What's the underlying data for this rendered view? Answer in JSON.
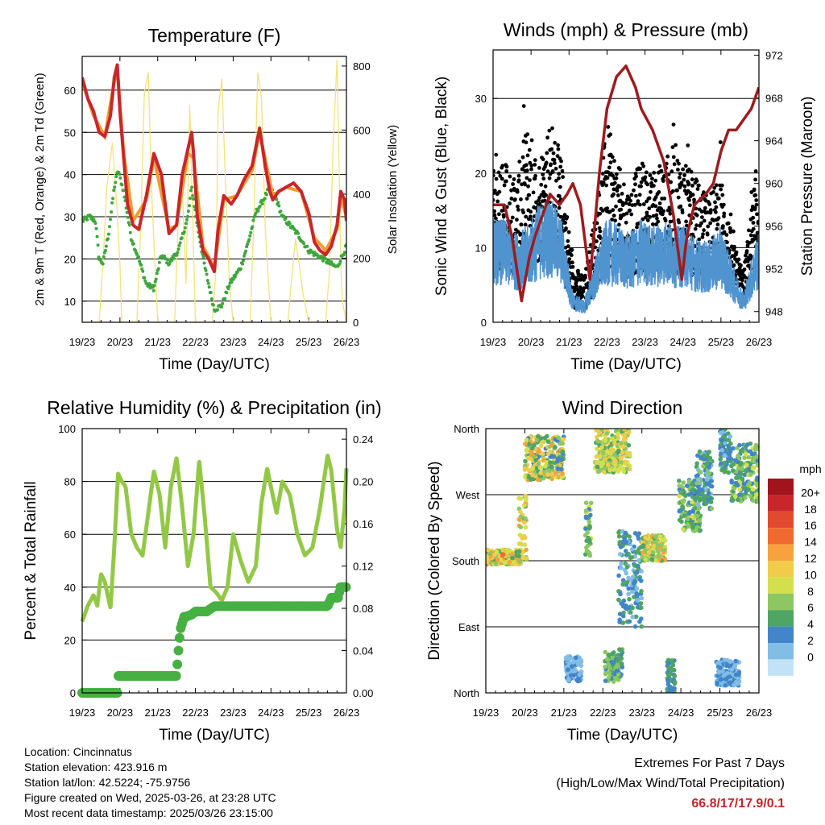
{
  "xaxis": {
    "ticks": [
      "19/23",
      "20/23",
      "21/23",
      "22/23",
      "23/23",
      "24/23",
      "25/23",
      "26/23"
    ],
    "label": "Time (Day/UTC)"
  },
  "info": {
    "location": "Location: Cincinnatus",
    "elevation": "Station elevation: 423.916 m",
    "latlon": "Station lat/lon: 42.5224; -75.9756",
    "created": "Figure created on Wed, 2025-03-26, at 23:28 UTC",
    "recent": "Most recent data timestamp: 2025/03/26 23:15:00"
  },
  "extremes": {
    "title": "Extremes For Past 7 Days",
    "subtitle": "(High/Low/Max Wind/Total Precipitation)",
    "values": "66.8/17/17.9/0.1"
  },
  "colors": {
    "temp2m": "#c8262b",
    "temp9m": "#f29a2e",
    "dewpoint": "#3ea63c",
    "solar": "#f4e27a",
    "wind": "#4f93cf",
    "gust": "#000000",
    "pressure": "#9e1b1e",
    "rh": "#93c847",
    "precip": "#46b043"
  },
  "chart_data": [
    {
      "id": "temperature",
      "type": "line",
      "title": "Temperature (F)",
      "xlabel": "Time (Day/UTC)",
      "ylabel": "2m & 9m T (Red, Orange) & 2m Td (Green)",
      "y2label": "Solar Insolation (Yellow)",
      "xlim": [
        0,
        7
      ],
      "ylim": [
        5,
        68
      ],
      "yticks": [
        10,
        20,
        30,
        40,
        50,
        60
      ],
      "y2lim": [
        0,
        830
      ],
      "y2ticks": [
        0,
        200,
        400,
        600,
        800
      ],
      "grid": true,
      "series": [
        {
          "key": "temp2m",
          "x": [
            0,
            0.15,
            0.3,
            0.45,
            0.6,
            0.75,
            0.85,
            0.93,
            1.0,
            1.1,
            1.2,
            1.35,
            1.5,
            1.7,
            1.9,
            2.1,
            2.3,
            2.5,
            2.65,
            2.8,
            2.9,
            2.95,
            3.05,
            3.2,
            3.35,
            3.5,
            3.6,
            3.75,
            3.95,
            4.1,
            4.3,
            4.5,
            4.7,
            4.85,
            4.97,
            5.05,
            5.2,
            5.4,
            5.6,
            5.8,
            6.0,
            6.15,
            6.3,
            6.45,
            6.6,
            6.75,
            6.85,
            6.95,
            7.0
          ],
          "y": [
            63,
            58,
            55,
            50,
            49,
            54,
            63,
            66,
            55,
            44,
            33,
            28,
            27,
            35,
            45,
            40,
            26,
            28,
            40,
            46,
            50,
            45,
            30,
            22,
            20,
            17,
            27,
            35,
            33,
            35,
            39,
            42,
            51,
            42,
            36,
            34,
            36,
            37,
            38,
            36,
            31,
            24,
            22,
            21,
            23,
            28,
            36,
            34,
            29
          ]
        },
        {
          "key": "temp9m",
          "x": [
            0,
            0.3,
            0.6,
            0.85,
            0.93,
            1.1,
            1.35,
            1.7,
            1.9,
            2.3,
            2.5,
            2.8,
            2.95,
            3.2,
            3.5,
            3.75,
            4.1,
            4.5,
            4.7,
            5.05,
            5.4,
            5.8,
            6.15,
            6.45,
            6.75,
            6.85,
            7.0
          ],
          "y": [
            62,
            54,
            49,
            62,
            65,
            45,
            29,
            34,
            44,
            27,
            28,
            45,
            44,
            23,
            18,
            34,
            35,
            41,
            50,
            35,
            37,
            36,
            25,
            22,
            27,
            35,
            30
          ]
        },
        {
          "key": "dewpoint",
          "x": [
            0,
            0.2,
            0.35,
            0.45,
            0.55,
            0.7,
            0.85,
            0.95,
            1.1,
            1.3,
            1.5,
            1.7,
            1.9,
            2.1,
            2.3,
            2.55,
            2.8,
            2.9,
            3.05,
            3.25,
            3.5,
            3.7,
            3.9,
            4.2,
            4.4,
            4.6,
            4.8,
            4.97,
            5.15,
            5.3,
            5.5,
            5.7,
            5.85,
            6.0,
            6.2,
            6.4,
            6.55,
            6.75,
            6.9,
            7.0
          ],
          "y": [
            29,
            30,
            29,
            20,
            19,
            26,
            37,
            41,
            36,
            25,
            20,
            14,
            13,
            21,
            19,
            22,
            30,
            37,
            28,
            18,
            8,
            9,
            14,
            18,
            24,
            31,
            34,
            37,
            34,
            30,
            28,
            26,
            24,
            22,
            21,
            20,
            19,
            18,
            21,
            23
          ]
        },
        {
          "key": "solar",
          "axis": "y2",
          "x": [
            0,
            0.45,
            0.55,
            0.65,
            0.8,
            0.92,
            1.0,
            1.05,
            1.2,
            1.45,
            1.55,
            1.65,
            1.75,
            1.85,
            2.0,
            2.45,
            2.55,
            2.65,
            2.75,
            2.85,
            3.0,
            3.45,
            3.55,
            3.6,
            3.7,
            3.8,
            3.9,
            4.0,
            4.45,
            4.55,
            4.65,
            4.75,
            4.85,
            5.0,
            5.45,
            5.55,
            5.65,
            5.75,
            5.85,
            6.0,
            6.45,
            6.55,
            6.65,
            6.75,
            6.8,
            6.85,
            6.9,
            7.0
          ],
          "y": [
            0,
            0,
            180,
            420,
            560,
            360,
            180,
            0,
            0,
            0,
            300,
            720,
            780,
            380,
            0,
            0,
            340,
            420,
            120,
            680,
            0,
            0,
            180,
            660,
            760,
            420,
            120,
            0,
            0,
            330,
            780,
            700,
            290,
            0,
            0,
            140,
            260,
            180,
            90,
            0,
            0,
            160,
            560,
            820,
            520,
            180,
            60,
            0
          ]
        }
      ]
    },
    {
      "id": "winds",
      "type": "scatter",
      "title": "Winds (mph) & Pressure (mb)",
      "xlabel": "Time (Day/UTC)",
      "ylabel": "Sonic Wind & Gust (Blue, Black)",
      "y2label": "Station Pressure (Maroon)",
      "xlim": [
        0,
        7
      ],
      "ylim": [
        0,
        36.5
      ],
      "yticks": [
        0,
        10,
        20,
        30
      ],
      "y2lim": [
        947,
        972.5
      ],
      "y2ticks": [
        948,
        952,
        956,
        960,
        964,
        968,
        972
      ],
      "grid": true,
      "series": [
        {
          "key": "wind_envelope",
          "x": [
            0,
            0.3,
            0.6,
            0.9,
            1.2,
            1.5,
            1.8,
            2.1,
            2.4,
            2.7,
            3.0,
            3.3,
            3.6,
            3.9,
            4.2,
            4.5,
            4.8,
            5.1,
            5.4,
            5.7,
            6.0,
            6.3,
            6.6,
            6.9,
            7.0
          ],
          "y": [
            14,
            14,
            12,
            13,
            16,
            17,
            14,
            4,
            3,
            9,
            14,
            13,
            12,
            14,
            13,
            14,
            13,
            13,
            11,
            11,
            13,
            8,
            4,
            11,
            12
          ]
        },
        {
          "key": "gust_envelope",
          "x": [
            0,
            0.3,
            0.6,
            0.9,
            1.2,
            1.5,
            1.8,
            2.1,
            2.4,
            2.7,
            3.0,
            3.3,
            3.6,
            3.9,
            4.2,
            4.5,
            4.8,
            5.1,
            5.4,
            5.7,
            6.0,
            6.3,
            6.6,
            6.9,
            7.0
          ],
          "y": [
            23,
            22,
            19,
            27,
            22,
            28,
            22,
            8,
            6,
            15,
            27,
            21,
            18,
            22,
            20,
            22,
            24,
            21,
            19,
            17,
            20,
            11,
            7,
            20,
            22
          ]
        },
        {
          "key": "pressure",
          "axis": "y2",
          "x": [
            0,
            0.3,
            0.5,
            0.75,
            0.95,
            1.1,
            1.3,
            1.5,
            1.75,
            1.95,
            2.1,
            2.3,
            2.55,
            2.8,
            3.0,
            3.25,
            3.5,
            3.75,
            3.9,
            4.2,
            4.5,
            4.75,
            4.97,
            5.1,
            5.3,
            5.6,
            5.8,
            6.0,
            6.2,
            6.4,
            6.6,
            6.8,
            7.0
          ],
          "y": [
            958,
            958,
            955,
            949,
            953,
            955,
            957,
            959,
            958,
            959,
            960,
            958,
            951,
            961,
            967,
            970,
            971,
            969,
            967,
            965,
            962,
            957,
            951,
            955,
            958,
            959,
            960,
            963,
            965,
            965,
            966,
            967,
            969
          ]
        }
      ]
    },
    {
      "id": "humidity",
      "type": "line",
      "title": "Relative Humidity (%) & Precipitation (in)",
      "xlabel": "Time (Day/UTC)",
      "ylabel": "Percent & Total Rainfall",
      "xlim": [
        0,
        7
      ],
      "ylim": [
        0,
        100
      ],
      "yticks": [
        0,
        20,
        40,
        60,
        80,
        100
      ],
      "y2lim": [
        0,
        0.25
      ],
      "y2ticks": [
        "0.00",
        "0.04",
        "0.08",
        "0.12",
        "0.16",
        "0.20",
        "0.24"
      ],
      "grid": true,
      "series": [
        {
          "key": "rh",
          "x": [
            0,
            0.15,
            0.3,
            0.4,
            0.5,
            0.6,
            0.75,
            0.85,
            0.95,
            1.05,
            1.15,
            1.3,
            1.45,
            1.6,
            1.75,
            1.9,
            2.05,
            2.2,
            2.35,
            2.5,
            2.65,
            2.8,
            2.95,
            3.1,
            3.25,
            3.4,
            3.55,
            3.7,
            3.85,
            4.0,
            4.2,
            4.4,
            4.6,
            4.75,
            4.9,
            5.0,
            5.15,
            5.3,
            5.5,
            5.7,
            5.9,
            6.1,
            6.3,
            6.5,
            6.6,
            6.75,
            6.85,
            6.95,
            7.0
          ],
          "y": [
            27,
            33,
            37,
            33,
            45,
            42,
            32,
            55,
            83,
            80,
            78,
            60,
            55,
            52,
            68,
            84,
            75,
            55,
            78,
            89,
            70,
            48,
            60,
            88,
            66,
            40,
            38,
            35,
            40,
            60,
            50,
            42,
            48,
            72,
            85,
            78,
            68,
            80,
            75,
            60,
            52,
            55,
            70,
            90,
            84,
            62,
            55,
            70,
            85
          ]
        },
        {
          "key": "precip",
          "axis": "y2",
          "x": [
            0,
            0.95,
            0.96,
            2.5,
            2.52,
            2.55,
            2.6,
            2.7,
            2.75,
            2.9,
            3.0,
            3.3,
            3.5,
            4.0,
            4.5,
            5.0,
            5.5,
            6.0,
            6.5,
            6.6,
            6.8,
            6.82,
            7.0
          ],
          "y": [
            0.0,
            0.0,
            0.016,
            0.016,
            0.027,
            0.04,
            0.06,
            0.072,
            0.072,
            0.074,
            0.077,
            0.077,
            0.082,
            0.082,
            0.082,
            0.082,
            0.082,
            0.082,
            0.082,
            0.09,
            0.09,
            0.1,
            0.1
          ]
        }
      ]
    },
    {
      "id": "direction",
      "type": "scatter",
      "title": "Wind Direction",
      "xlabel": "Time (Day/UTC)",
      "ylabel": "Direction (Colored By Speed)",
      "xlim": [
        0,
        7
      ],
      "ylim": [
        0,
        360
      ],
      "yticks": [
        "North",
        "East",
        "South",
        "West",
        "North"
      ],
      "ytick_values": [
        0,
        90,
        180,
        270,
        360
      ],
      "grid": true,
      "legend": {
        "title": "mph",
        "labels": [
          "20+",
          "18",
          "16",
          "14",
          "12",
          "10",
          "8",
          "6",
          "4",
          "2",
          "0"
        ],
        "colors": [
          "#a1141b",
          "#c8262b",
          "#e24a2f",
          "#f06a30",
          "#f8a23f",
          "#f0cc4a",
          "#d4df4e",
          "#8dc763",
          "#4ea564",
          "#4285c8",
          "#82bde6",
          "#c2e3f7"
        ],
        "placement": "right"
      },
      "clusters": [
        {
          "x": [
            0,
            0.9
          ],
          "dir": [
            175,
            195
          ],
          "speed": [
            6,
            16
          ]
        },
        {
          "x": [
            0.85,
            1.05
          ],
          "dir": [
            180,
            270
          ],
          "speed": [
            6,
            14
          ]
        },
        {
          "x": [
            1.0,
            2.0
          ],
          "dir": [
            290,
            350
          ],
          "speed": [
            4,
            14
          ]
        },
        {
          "x": [
            2.05,
            2.45
          ],
          "dir": [
            15,
            50
          ],
          "speed": [
            1,
            4
          ]
        },
        {
          "x": [
            2.55,
            2.7
          ],
          "dir": [
            180,
            260
          ],
          "speed": [
            4,
            10
          ]
        },
        {
          "x": [
            2.8,
            3.7
          ],
          "dir": [
            300,
            360
          ],
          "speed": [
            6,
            13
          ]
        },
        {
          "x": [
            3.05,
            3.5
          ],
          "dir": [
            15,
            60
          ],
          "speed": [
            3,
            9
          ]
        },
        {
          "x": [
            3.4,
            4.0
          ],
          "dir": [
            90,
            220
          ],
          "speed": [
            2,
            7
          ]
        },
        {
          "x": [
            4.0,
            4.6
          ],
          "dir": [
            180,
            215
          ],
          "speed": [
            6,
            14
          ]
        },
        {
          "x": [
            4.65,
            4.85
          ],
          "dir": [
            0,
            45
          ],
          "speed": [
            3,
            7
          ]
        },
        {
          "x": [
            4.95,
            5.5
          ],
          "dir": [
            220,
            290
          ],
          "speed": [
            3,
            10
          ]
        },
        {
          "x": [
            5.4,
            5.8
          ],
          "dir": [
            250,
            330
          ],
          "speed": [
            2,
            8
          ]
        },
        {
          "x": [
            5.9,
            6.5
          ],
          "dir": [
            10,
            45
          ],
          "speed": [
            1,
            4
          ]
        },
        {
          "x": [
            6.0,
            6.3
          ],
          "dir": [
            300,
            360
          ],
          "speed": [
            2,
            7
          ]
        },
        {
          "x": [
            6.3,
            7.0
          ],
          "dir": [
            260,
            340
          ],
          "speed": [
            3,
            10
          ]
        }
      ]
    }
  ]
}
